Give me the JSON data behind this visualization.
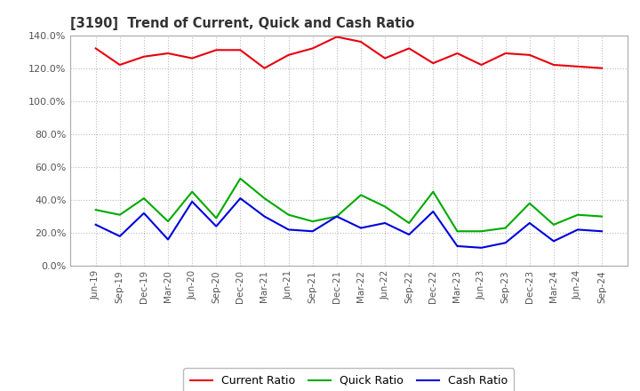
{
  "title": "[3190]  Trend of Current, Quick and Cash Ratio",
  "x_labels": [
    "Jun-19",
    "Sep-19",
    "Dec-19",
    "Mar-20",
    "Jun-20",
    "Sep-20",
    "Dec-20",
    "Mar-21",
    "Jun-21",
    "Sep-21",
    "Dec-21",
    "Mar-22",
    "Jun-22",
    "Sep-22",
    "Dec-22",
    "Mar-23",
    "Jun-23",
    "Sep-23",
    "Dec-23",
    "Mar-24",
    "Jun-24",
    "Sep-24"
  ],
  "current_ratio": [
    132,
    122,
    127,
    129,
    126,
    131,
    131,
    120,
    128,
    132,
    139,
    136,
    126,
    132,
    123,
    129,
    122,
    129,
    128,
    122,
    121,
    120
  ],
  "quick_ratio": [
    34,
    31,
    41,
    27,
    45,
    29,
    53,
    41,
    31,
    27,
    30,
    43,
    36,
    26,
    45,
    21,
    21,
    23,
    38,
    25,
    31,
    30
  ],
  "cash_ratio": [
    25,
    18,
    32,
    16,
    39,
    24,
    41,
    30,
    22,
    21,
    30,
    23,
    26,
    19,
    33,
    12,
    11,
    14,
    26,
    15,
    22,
    21
  ],
  "current_color": "#e8000d",
  "quick_color": "#00aa00",
  "cash_color": "#0000dd",
  "background_color": "#ffffff",
  "plot_bg_color": "#ffffff",
  "grid_color": "#bbbbbb",
  "ylim": [
    0,
    140
  ],
  "yticks": [
    0,
    20,
    40,
    60,
    80,
    100,
    120,
    140
  ],
  "ytick_labels": [
    "0.0%",
    "20.0%",
    "40.0%",
    "60.0%",
    "80.0%",
    "100.0%",
    "120.0%",
    "140.0%"
  ],
  "legend_labels": [
    "Current Ratio",
    "Quick Ratio",
    "Cash Ratio"
  ],
  "title_color": "#333333",
  "tick_color": "#555555"
}
